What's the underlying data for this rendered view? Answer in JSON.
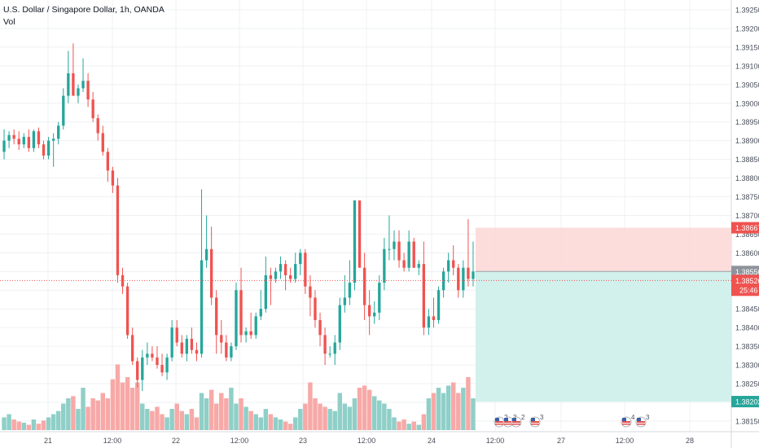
{
  "header": {
    "title": "U.S. Dollar / Singapore Dollar, 1h, OANDA",
    "volume_label": "Vol"
  },
  "colors": {
    "up": "#26a69a",
    "down": "#ef5350",
    "up_volume": "#8fcfc8",
    "down_volume": "#f7a9a7",
    "grid": "#eef0f3",
    "axis_text": "#4a4f5c",
    "price_line": "#ef5350",
    "stop_zone": "#fbd7d6",
    "target_zone": "#cdeeea",
    "entry_tag": "#8f949c"
  },
  "chart_data": {
    "type": "candlestick",
    "title": "U.S. Dollar / Singapore Dollar, 1h, OANDA",
    "y_axis_position": "right",
    "ylim": [
      1.3811,
      1.3927
    ],
    "grid": true,
    "y_ticks": [
      "1.39250",
      "1.39200",
      "1.39150",
      "1.39100",
      "1.39050",
      "1.39000",
      "1.38950",
      "1.38900",
      "1.38850",
      "1.38800",
      "1.38750",
      "1.38700",
      "1.38650",
      "1.38600",
      "1.38550",
      "1.38500",
      "1.38450",
      "1.38400",
      "1.38350",
      "1.38300",
      "1.38250",
      "1.38200",
      "1.38150"
    ],
    "x_ticks": [
      "21",
      "12:00",
      "22",
      "12:00",
      "23",
      "12:00",
      "24",
      "12:00",
      "27",
      "12:00",
      "28"
    ],
    "candles": [
      {
        "o": 1.3887,
        "h": 1.3893,
        "l": 1.3885,
        "c": 1.389,
        "v": 0.12
      },
      {
        "o": 1.389,
        "h": 1.38925,
        "l": 1.3888,
        "c": 1.38915,
        "v": 0.15
      },
      {
        "o": 1.38915,
        "h": 1.3893,
        "l": 1.3889,
        "c": 1.38905,
        "v": 0.1
      },
      {
        "o": 1.38905,
        "h": 1.38925,
        "l": 1.38875,
        "c": 1.3889,
        "v": 0.08
      },
      {
        "o": 1.3889,
        "h": 1.3892,
        "l": 1.3888,
        "c": 1.3891,
        "v": 0.07
      },
      {
        "o": 1.3891,
        "h": 1.3893,
        "l": 1.3887,
        "c": 1.3888,
        "v": 0.05
      },
      {
        "o": 1.3888,
        "h": 1.3893,
        "l": 1.3887,
        "c": 1.38925,
        "v": 0.1
      },
      {
        "o": 1.38925,
        "h": 1.38935,
        "l": 1.3888,
        "c": 1.3889,
        "v": 0.06
      },
      {
        "o": 1.3889,
        "h": 1.389,
        "l": 1.3885,
        "c": 1.3886,
        "v": 0.09
      },
      {
        "o": 1.3886,
        "h": 1.3891,
        "l": 1.3885,
        "c": 1.389,
        "v": 0.12
      },
      {
        "o": 1.389,
        "h": 1.3892,
        "l": 1.3883,
        "c": 1.38905,
        "v": 0.15
      },
      {
        "o": 1.38905,
        "h": 1.3895,
        "l": 1.3889,
        "c": 1.3894,
        "v": 0.18
      },
      {
        "o": 1.3894,
        "h": 1.3904,
        "l": 1.3893,
        "c": 1.3902,
        "v": 0.25
      },
      {
        "o": 1.3902,
        "h": 1.3914,
        "l": 1.39,
        "c": 1.3908,
        "v": 0.3
      },
      {
        "o": 1.3908,
        "h": 1.3916,
        "l": 1.3902,
        "c": 1.3902,
        "v": 0.32
      },
      {
        "o": 1.3902,
        "h": 1.3905,
        "l": 1.39,
        "c": 1.3904,
        "v": 0.2
      },
      {
        "o": 1.3904,
        "h": 1.3912,
        "l": 1.3903,
        "c": 1.3906,
        "v": 0.4
      },
      {
        "o": 1.3906,
        "h": 1.3908,
        "l": 1.3899,
        "c": 1.3901,
        "v": 0.22
      },
      {
        "o": 1.3901,
        "h": 1.3903,
        "l": 1.3895,
        "c": 1.3896,
        "v": 0.3
      },
      {
        "o": 1.3896,
        "h": 1.3897,
        "l": 1.389,
        "c": 1.3892,
        "v": 0.28
      },
      {
        "o": 1.3892,
        "h": 1.3894,
        "l": 1.3886,
        "c": 1.3887,
        "v": 0.35
      },
      {
        "o": 1.3887,
        "h": 1.3888,
        "l": 1.3879,
        "c": 1.3882,
        "v": 0.3
      },
      {
        "o": 1.3882,
        "h": 1.3883,
        "l": 1.3876,
        "c": 1.3878,
        "v": 0.48
      },
      {
        "o": 1.3878,
        "h": 1.388,
        "l": 1.3852,
        "c": 1.3854,
        "v": 0.62
      },
      {
        "o": 1.3854,
        "h": 1.3856,
        "l": 1.3849,
        "c": 1.3851,
        "v": 0.45
      },
      {
        "o": 1.3851,
        "h": 1.3852,
        "l": 1.3837,
        "c": 1.3838,
        "v": 0.5
      },
      {
        "o": 1.3838,
        "h": 1.384,
        "l": 1.383,
        "c": 1.3831,
        "v": 0.4
      },
      {
        "o": 1.3831,
        "h": 1.3832,
        "l": 1.3824,
        "c": 1.3826,
        "v": 0.45
      },
      {
        "o": 1.3826,
        "h": 1.3834,
        "l": 1.3823,
        "c": 1.3832,
        "v": 0.25
      },
      {
        "o": 1.3832,
        "h": 1.3836,
        "l": 1.383,
        "c": 1.3833,
        "v": 0.2
      },
      {
        "o": 1.3833,
        "h": 1.3835,
        "l": 1.3831,
        "c": 1.3832,
        "v": 0.18
      },
      {
        "o": 1.3832,
        "h": 1.3835,
        "l": 1.3829,
        "c": 1.383,
        "v": 0.22
      },
      {
        "o": 1.383,
        "h": 1.3833,
        "l": 1.3827,
        "c": 1.3828,
        "v": 0.15
      },
      {
        "o": 1.3828,
        "h": 1.3833,
        "l": 1.3826,
        "c": 1.3832,
        "v": 0.12
      },
      {
        "o": 1.3832,
        "h": 1.3842,
        "l": 1.3831,
        "c": 1.384,
        "v": 0.2
      },
      {
        "o": 1.384,
        "h": 1.3842,
        "l": 1.3835,
        "c": 1.3836,
        "v": 0.25
      },
      {
        "o": 1.3836,
        "h": 1.3838,
        "l": 1.3832,
        "c": 1.3833,
        "v": 0.18
      },
      {
        "o": 1.3833,
        "h": 1.3838,
        "l": 1.3831,
        "c": 1.3837,
        "v": 0.15
      },
      {
        "o": 1.3837,
        "h": 1.384,
        "l": 1.3833,
        "c": 1.3834,
        "v": 0.2
      },
      {
        "o": 1.3834,
        "h": 1.3836,
        "l": 1.3831,
        "c": 1.3833,
        "v": 0.12
      },
      {
        "o": 1.3833,
        "h": 1.3877,
        "l": 1.3832,
        "c": 1.3858,
        "v": 0.35
      },
      {
        "o": 1.3858,
        "h": 1.387,
        "l": 1.3856,
        "c": 1.3861,
        "v": 0.3
      },
      {
        "o": 1.3861,
        "h": 1.3867,
        "l": 1.3846,
        "c": 1.3848,
        "v": 0.38
      },
      {
        "o": 1.3848,
        "h": 1.385,
        "l": 1.3833,
        "c": 1.3838,
        "v": 0.25
      },
      {
        "o": 1.3838,
        "h": 1.3842,
        "l": 1.3833,
        "c": 1.3836,
        "v": 0.35
      },
      {
        "o": 1.3836,
        "h": 1.3838,
        "l": 1.3831,
        "c": 1.3832,
        "v": 0.3
      },
      {
        "o": 1.3832,
        "h": 1.3836,
        "l": 1.3831,
        "c": 1.3835,
        "v": 0.4
      },
      {
        "o": 1.3835,
        "h": 1.3852,
        "l": 1.3834,
        "c": 1.385,
        "v": 0.25
      },
      {
        "o": 1.385,
        "h": 1.3856,
        "l": 1.3836,
        "c": 1.3838,
        "v": 0.3
      },
      {
        "o": 1.3838,
        "h": 1.384,
        "l": 1.3836,
        "c": 1.3839,
        "v": 0.22
      },
      {
        "o": 1.3839,
        "h": 1.3844,
        "l": 1.3837,
        "c": 1.3838,
        "v": 0.18
      },
      {
        "o": 1.3838,
        "h": 1.3844,
        "l": 1.3837,
        "c": 1.3843,
        "v": 0.15
      },
      {
        "o": 1.3843,
        "h": 1.385,
        "l": 1.3842,
        "c": 1.3845,
        "v": 0.12
      },
      {
        "o": 1.3845,
        "h": 1.3859,
        "l": 1.3844,
        "c": 1.3854,
        "v": 0.2
      },
      {
        "o": 1.3854,
        "h": 1.3856,
        "l": 1.3846,
        "c": 1.3853,
        "v": 0.15
      },
      {
        "o": 1.3853,
        "h": 1.3856,
        "l": 1.3852,
        "c": 1.3855,
        "v": 0.12
      },
      {
        "o": 1.3855,
        "h": 1.3859,
        "l": 1.3853,
        "c": 1.3857,
        "v": 0.1
      },
      {
        "o": 1.3857,
        "h": 1.3858,
        "l": 1.385,
        "c": 1.3854,
        "v": 0.08
      },
      {
        "o": 1.3854,
        "h": 1.3856,
        "l": 1.3852,
        "c": 1.3853,
        "v": 0.06
      },
      {
        "o": 1.3853,
        "h": 1.386,
        "l": 1.3852,
        "c": 1.3857,
        "v": 0.12
      },
      {
        "o": 1.3857,
        "h": 1.3861,
        "l": 1.3854,
        "c": 1.386,
        "v": 0.2
      },
      {
        "o": 1.386,
        "h": 1.3861,
        "l": 1.3849,
        "c": 1.3851,
        "v": 0.25
      },
      {
        "o": 1.3851,
        "h": 1.3854,
        "l": 1.3843,
        "c": 1.3848,
        "v": 0.45
      },
      {
        "o": 1.3848,
        "h": 1.385,
        "l": 1.384,
        "c": 1.3842,
        "v": 0.3
      },
      {
        "o": 1.3842,
        "h": 1.3844,
        "l": 1.3835,
        "c": 1.3838,
        "v": 0.25
      },
      {
        "o": 1.3838,
        "h": 1.384,
        "l": 1.383,
        "c": 1.3833,
        "v": 0.22
      },
      {
        "o": 1.3833,
        "h": 1.3835,
        "l": 1.3832,
        "c": 1.3833,
        "v": 0.2
      },
      {
        "o": 1.3833,
        "h": 1.3838,
        "l": 1.383,
        "c": 1.3836,
        "v": 0.18
      },
      {
        "o": 1.3836,
        "h": 1.3848,
        "l": 1.3834,
        "c": 1.3846,
        "v": 0.35
      },
      {
        "o": 1.3846,
        "h": 1.3854,
        "l": 1.3844,
        "c": 1.3848,
        "v": 0.25
      },
      {
        "o": 1.3848,
        "h": 1.3858,
        "l": 1.3846,
        "c": 1.3852,
        "v": 0.22
      },
      {
        "o": 1.3852,
        "h": 1.3874,
        "l": 1.385,
        "c": 1.3874,
        "v": 0.3
      },
      {
        "o": 1.3874,
        "h": 1.3874,
        "l": 1.3856,
        "c": 1.3856,
        "v": 0.4
      },
      {
        "o": 1.3856,
        "h": 1.386,
        "l": 1.3842,
        "c": 1.3846,
        "v": 0.42
      },
      {
        "o": 1.3846,
        "h": 1.385,
        "l": 1.3838,
        "c": 1.3843,
        "v": 0.38
      },
      {
        "o": 1.3843,
        "h": 1.3847,
        "l": 1.3841,
        "c": 1.3844,
        "v": 0.32
      },
      {
        "o": 1.3844,
        "h": 1.3854,
        "l": 1.3842,
        "c": 1.3852,
        "v": 0.28
      },
      {
        "o": 1.3852,
        "h": 1.3864,
        "l": 1.385,
        "c": 1.3861,
        "v": 0.25
      },
      {
        "o": 1.3861,
        "h": 1.387,
        "l": 1.3858,
        "c": 1.3861,
        "v": 0.2
      },
      {
        "o": 1.3861,
        "h": 1.3866,
        "l": 1.3858,
        "c": 1.3863,
        "v": 0.12
      },
      {
        "o": 1.3863,
        "h": 1.3866,
        "l": 1.3856,
        "c": 1.3858,
        "v": 0.08
      },
      {
        "o": 1.3858,
        "h": 1.386,
        "l": 1.3855,
        "c": 1.3856,
        "v": 0.1
      },
      {
        "o": 1.3856,
        "h": 1.3866,
        "l": 1.3855,
        "c": 1.3863,
        "v": 0.06
      },
      {
        "o": 1.3863,
        "h": 1.3864,
        "l": 1.3856,
        "c": 1.3856,
        "v": 0.08
      },
      {
        "o": 1.3856,
        "h": 1.3858,
        "l": 1.3854,
        "c": 1.3857,
        "v": 0.05
      },
      {
        "o": 1.3857,
        "h": 1.3863,
        "l": 1.3838,
        "c": 1.384,
        "v": 0.15
      },
      {
        "o": 1.384,
        "h": 1.3845,
        "l": 1.3838,
        "c": 1.3843,
        "v": 0.3
      },
      {
        "o": 1.3843,
        "h": 1.3848,
        "l": 1.384,
        "c": 1.3842,
        "v": 0.35
      },
      {
        "o": 1.3842,
        "h": 1.3851,
        "l": 1.3841,
        "c": 1.385,
        "v": 0.4
      },
      {
        "o": 1.385,
        "h": 1.3856,
        "l": 1.3848,
        "c": 1.3855,
        "v": 0.35
      },
      {
        "o": 1.3855,
        "h": 1.386,
        "l": 1.3852,
        "c": 1.3858,
        "v": 0.42
      },
      {
        "o": 1.3858,
        "h": 1.3862,
        "l": 1.3854,
        "c": 1.3856,
        "v": 0.45
      },
      {
        "o": 1.3856,
        "h": 1.3857,
        "l": 1.3848,
        "c": 1.385,
        "v": 0.35
      },
      {
        "o": 1.385,
        "h": 1.3858,
        "l": 1.3848,
        "c": 1.3856,
        "v": 0.4
      },
      {
        "o": 1.3856,
        "h": 1.3869,
        "l": 1.3851,
        "c": 1.3853,
        "v": 0.5
      },
      {
        "o": 1.3853,
        "h": 1.3863,
        "l": 1.3851,
        "c": 1.3855,
        "v": 0.3
      }
    ],
    "trade_setup": {
      "stop": 1.38667,
      "entry": 1.3855,
      "target": 1.38202
    },
    "price_line": {
      "value": "1.38526",
      "countdown": "25:46"
    },
    "price_labels": {
      "stop": "1.38667",
      "entry": "1.38550",
      "target": "1.38202"
    },
    "events": [
      {
        "label": "2",
        "x_label": "12:00-ish"
      },
      {
        "label": "3",
        "x_label": "12:00-ish"
      },
      {
        "label": "2",
        "x_label": "12:00-ish"
      },
      {
        "label": "3",
        "x_label": "27"
      },
      {
        "label": "4",
        "x_label": "12:00"
      },
      {
        "label": "3",
        "x_label": "12:00"
      }
    ]
  }
}
